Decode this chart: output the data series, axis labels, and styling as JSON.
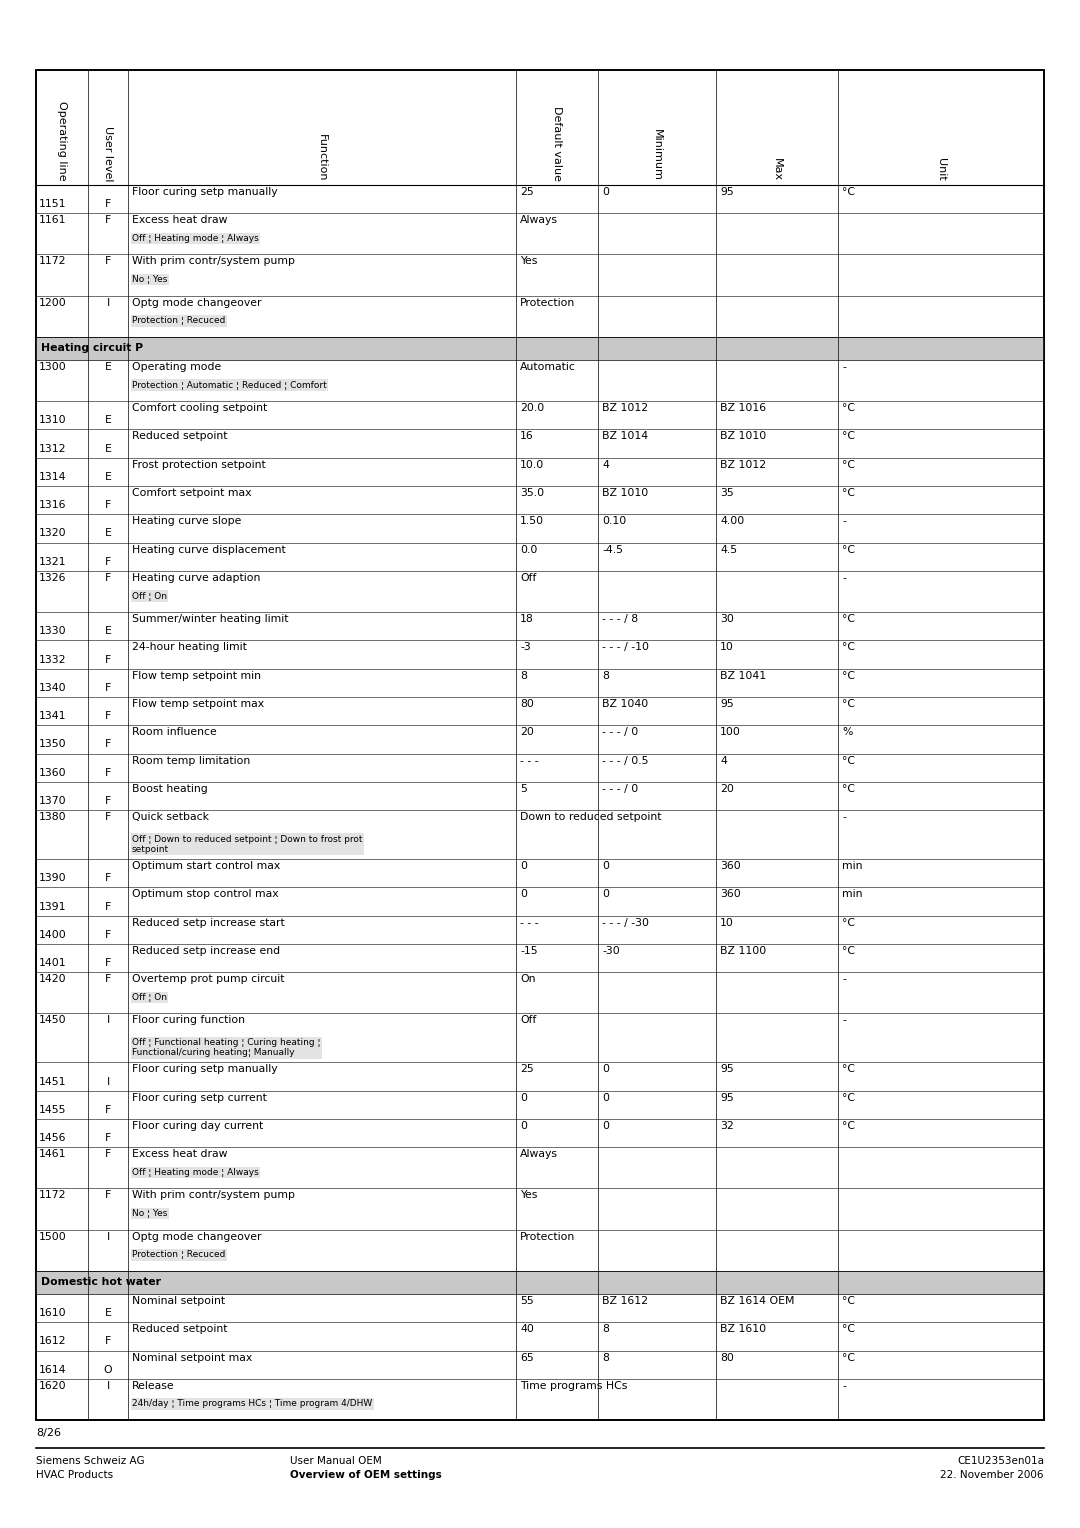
{
  "page_num": "8/26",
  "footer_left1": "Siemens Schweiz AG",
  "footer_left2": "HVAC Products",
  "footer_mid1": "User Manual OEM",
  "footer_mid2": "Overview of OEM settings",
  "footer_right1": "CE1U2353en01a",
  "footer_right2": "22. November 2006",
  "col_headers": [
    "Operating line",
    "User level",
    "Function",
    "Default value",
    "Minimum",
    "Max",
    "Unit"
  ],
  "section_bg": "#c8c8c8",
  "rows": [
    {
      "line": "1151",
      "level": "F",
      "func": "Floor curing setp manually",
      "sub": "",
      "default": "25",
      "min": "0",
      "max": "95",
      "unit": "°C",
      "type": "normal"
    },
    {
      "line": "1161",
      "level": "F",
      "func": "Excess heat draw",
      "sub": "Off ¦ Heating mode ¦ Always",
      "default": "Always",
      "min": "",
      "max": "",
      "unit": "",
      "type": "normal"
    },
    {
      "line": "1172",
      "level": "F",
      "func": "With prim contr/system pump",
      "sub": "No ¦ Yes",
      "default": "Yes",
      "min": "",
      "max": "",
      "unit": "",
      "type": "normal"
    },
    {
      "line": "1200",
      "level": "I",
      "func": "Optg mode changeover",
      "sub": "Protection ¦ Recuced",
      "default": "Protection",
      "min": "",
      "max": "",
      "unit": "",
      "type": "normal"
    },
    {
      "line": "",
      "level": "",
      "func": "Heating circuit P",
      "sub": "",
      "default": "",
      "min": "",
      "max": "",
      "unit": "",
      "type": "section"
    },
    {
      "line": "1300",
      "level": "E",
      "func": "Operating mode",
      "sub": "Protection ¦ Automatic ¦ Reduced ¦ Comfort",
      "default": "Automatic",
      "min": "",
      "max": "",
      "unit": "-",
      "type": "normal"
    },
    {
      "line": "1310",
      "level": "E",
      "func": "Comfort cooling setpoint",
      "sub": "",
      "default": "20.0",
      "min": "BZ 1012",
      "max": "BZ 1016",
      "unit": "°C",
      "type": "normal"
    },
    {
      "line": "1312",
      "level": "E",
      "func": "Reduced setpoint",
      "sub": "",
      "default": "16",
      "min": "BZ 1014",
      "max": "BZ 1010",
      "unit": "°C",
      "type": "normal"
    },
    {
      "line": "1314",
      "level": "E",
      "func": "Frost protection setpoint",
      "sub": "",
      "default": "10.0",
      "min": "4",
      "max": "BZ 1012",
      "unit": "°C",
      "type": "normal"
    },
    {
      "line": "1316",
      "level": "F",
      "func": "Comfort setpoint max",
      "sub": "",
      "default": "35.0",
      "min": "BZ 1010",
      "max": "35",
      "unit": "°C",
      "type": "normal"
    },
    {
      "line": "1320",
      "level": "E",
      "func": "Heating curve slope",
      "sub": "",
      "default": "1.50",
      "min": "0.10",
      "max": "4.00",
      "unit": "-",
      "type": "normal"
    },
    {
      "line": "1321",
      "level": "F",
      "func": "Heating curve displacement",
      "sub": "",
      "default": "0.0",
      "min": "-4.5",
      "max": "4.5",
      "unit": "°C",
      "type": "normal"
    },
    {
      "line": "1326",
      "level": "F",
      "func": "Heating curve adaption",
      "sub": "Off ¦ On",
      "default": "Off",
      "min": "",
      "max": "",
      "unit": "-",
      "type": "normal"
    },
    {
      "line": "1330",
      "level": "E",
      "func": "Summer/winter heating limit",
      "sub": "",
      "default": "18",
      "min": "- - - / 8",
      "max": "30",
      "unit": "°C",
      "type": "normal"
    },
    {
      "line": "1332",
      "level": "F",
      "func": "24-hour heating limit",
      "sub": "",
      "default": "-3",
      "min": "- - - / -10",
      "max": "10",
      "unit": "°C",
      "type": "normal"
    },
    {
      "line": "1340",
      "level": "F",
      "func": "Flow temp setpoint min",
      "sub": "",
      "default": "8",
      "min": "8",
      "max": "BZ 1041",
      "unit": "°C",
      "type": "normal"
    },
    {
      "line": "1341",
      "level": "F",
      "func": "Flow temp setpoint max",
      "sub": "",
      "default": "80",
      "min": "BZ 1040",
      "max": "95",
      "unit": "°C",
      "type": "normal"
    },
    {
      "line": "1350",
      "level": "F",
      "func": "Room influence",
      "sub": "",
      "default": "20",
      "min": "- - - / 0",
      "max": "100",
      "unit": "%",
      "type": "normal"
    },
    {
      "line": "1360",
      "level": "F",
      "func": "Room temp limitation",
      "sub": "",
      "default": "- - -",
      "min": "- - - / 0.5",
      "max": "4",
      "unit": "°C",
      "type": "normal"
    },
    {
      "line": "1370",
      "level": "F",
      "func": "Boost heating",
      "sub": "",
      "default": "5",
      "min": "- - - / 0",
      "max": "20",
      "unit": "°C",
      "type": "normal"
    },
    {
      "line": "1380",
      "level": "F",
      "func": "Quick setback",
      "sub": "Off ¦ Down to reduced setpoint ¦ Down to frost prot\nsetpoint",
      "default": "Down to reduced setpoint",
      "min": "",
      "max": "",
      "unit": "-",
      "type": "normal"
    },
    {
      "line": "1390",
      "level": "F",
      "func": "Optimum start control max",
      "sub": "",
      "default": "0",
      "min": "0",
      "max": "360",
      "unit": "min",
      "type": "normal"
    },
    {
      "line": "1391",
      "level": "F",
      "func": "Optimum stop control max",
      "sub": "",
      "default": "0",
      "min": "0",
      "max": "360",
      "unit": "min",
      "type": "normal"
    },
    {
      "line": "1400",
      "level": "F",
      "func": "Reduced setp increase start",
      "sub": "",
      "default": "- - -",
      "min": "- - - / -30",
      "max": "10",
      "unit": "°C",
      "type": "normal"
    },
    {
      "line": "1401",
      "level": "F",
      "func": "Reduced setp increase end",
      "sub": "",
      "default": "-15",
      "min": "-30",
      "max": "BZ 1100",
      "unit": "°C",
      "type": "normal"
    },
    {
      "line": "1420",
      "level": "F",
      "func": "Overtemp prot pump circuit",
      "sub": "Off ¦ On",
      "default": "On",
      "min": "",
      "max": "",
      "unit": "-",
      "type": "normal"
    },
    {
      "line": "1450",
      "level": "I",
      "func": "Floor curing function",
      "sub": "Off ¦ Functional heating ¦ Curing heating ¦\nFunctional/curing heating¦ Manually",
      "default": "Off",
      "min": "",
      "max": "",
      "unit": "-",
      "type": "normal"
    },
    {
      "line": "1451",
      "level": "I",
      "func": "Floor curing setp manually",
      "sub": "",
      "default": "25",
      "min": "0",
      "max": "95",
      "unit": "°C",
      "type": "normal"
    },
    {
      "line": "1455",
      "level": "F",
      "func": "Floor curing setp current",
      "sub": "",
      "default": "0",
      "min": "0",
      "max": "95",
      "unit": "°C",
      "type": "normal"
    },
    {
      "line": "1456",
      "level": "F",
      "func": "Floor curing day current",
      "sub": "",
      "default": "0",
      "min": "0",
      "max": "32",
      "unit": "°C",
      "type": "normal"
    },
    {
      "line": "1461",
      "level": "F",
      "func": "Excess heat draw",
      "sub": "Off ¦ Heating mode ¦ Always",
      "default": "Always",
      "min": "",
      "max": "",
      "unit": "",
      "type": "normal"
    },
    {
      "line": "1172",
      "level": "F",
      "func": "With prim contr/system pump",
      "sub": "No ¦ Yes",
      "default": "Yes",
      "min": "",
      "max": "",
      "unit": "",
      "type": "normal"
    },
    {
      "line": "1500",
      "level": "I",
      "func": "Optg mode changeover",
      "sub": "Protection ¦ Recuced",
      "default": "Protection",
      "min": "",
      "max": "",
      "unit": "",
      "type": "normal"
    },
    {
      "line": "",
      "level": "",
      "func": "Domestic hot water",
      "sub": "",
      "default": "",
      "min": "",
      "max": "",
      "unit": "",
      "type": "section"
    },
    {
      "line": "1610",
      "level": "E",
      "func": "Nominal setpoint",
      "sub": "",
      "default": "55",
      "min": "BZ 1612",
      "max": "BZ 1614 OEM",
      "unit": "°C",
      "type": "normal"
    },
    {
      "line": "1612",
      "level": "F",
      "func": "Reduced setpoint",
      "sub": "",
      "default": "40",
      "min": "8",
      "max": "BZ 1610",
      "unit": "°C",
      "type": "normal"
    },
    {
      "line": "1614",
      "level": "O",
      "func": "Nominal setpoint max",
      "sub": "",
      "default": "65",
      "min": "8",
      "max": "80",
      "unit": "°C",
      "type": "normal"
    },
    {
      "line": "1620",
      "level": "I",
      "func": "Release",
      "sub": "24h/day ¦ Time programs HCs ¦ Time program 4/DHW",
      "default": "Time programs HCs",
      "min": "",
      "max": "",
      "unit": "-",
      "type": "normal"
    }
  ]
}
